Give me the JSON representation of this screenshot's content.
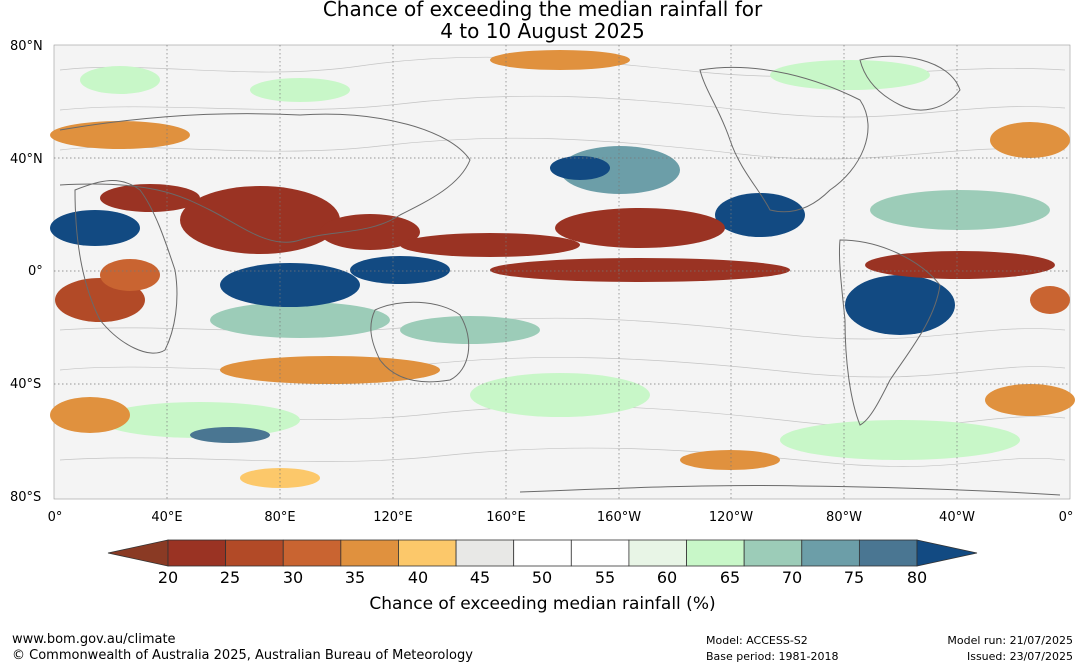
{
  "title_line1": "Chance of exceeding the median rainfall for",
  "title_line2": "4 to 10 August 2025",
  "lat_labels": [
    "80°N",
    "40°N",
    "0°",
    "40°S",
    "80°S"
  ],
  "lon_labels": [
    "0°",
    "40°E",
    "80°E",
    "120°E",
    "160°E",
    "160°W",
    "120°W",
    "80°W",
    "40°W",
    "0°"
  ],
  "colorbar": {
    "ticks": [
      "20",
      "25",
      "30",
      "35",
      "40",
      "45",
      "50",
      "55",
      "60",
      "65",
      "70",
      "75",
      "80"
    ],
    "colors": [
      "#9a3323",
      "#b24a27",
      "#c96431",
      "#e0913e",
      "#fcc86a",
      "#e8e8e6",
      "#ffffff",
      "#ffffff",
      "#e8f5e6",
      "#c8f7c8",
      "#9cccb8",
      "#6c9ea8",
      "#4a7692"
    ],
    "low_color": "#8a3a24",
    "high_color": "#124a82",
    "label": "Chance of exceeding median rainfall (%)"
  },
  "footer": {
    "website": "www.bom.gov.au/climate",
    "copyright": "© Commonwealth of Australia 2025, Australian Bureau of Meteorology",
    "model": "Model: ACCESS-S2",
    "base_period": "Base period: 1981-2018",
    "model_run": "Model run: 21/07/2025",
    "issued": "Issued: 23/07/2025"
  }
}
